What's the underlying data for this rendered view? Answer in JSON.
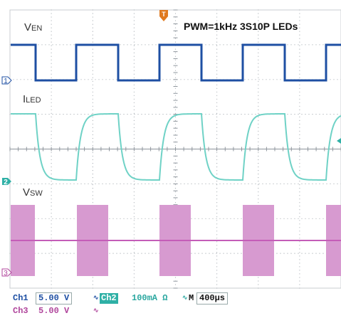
{
  "labels": {
    "ven_main": "V",
    "ven_sub": "EN",
    "iled_main": "I",
    "iled_sub": "LED",
    "vsw_main": "V",
    "vsw_sub": "SW",
    "annotation": "PWM=1kHz 3S10P LEDs"
  },
  "markers": {
    "ch1": "1",
    "ch2": "2",
    "ch3": "3",
    "trigger": "T"
  },
  "status": {
    "ch1_label": "Ch1",
    "ch1_scale": "5.00 V",
    "ch2_label": "Ch2",
    "ch2_scale": "100mA Ω",
    "ch3_label": "Ch3",
    "ch3_scale": "5.00 V",
    "timebase_label": "M",
    "timebase": "400μs"
  },
  "colors": {
    "ch1": "#1e4fa3",
    "ch2": "#6fd2c6",
    "ch3": "#d79ad0",
    "ch3_line": "#c45db8",
    "grid": "#9aa0a6",
    "trigger": "#e07a20"
  }
}
